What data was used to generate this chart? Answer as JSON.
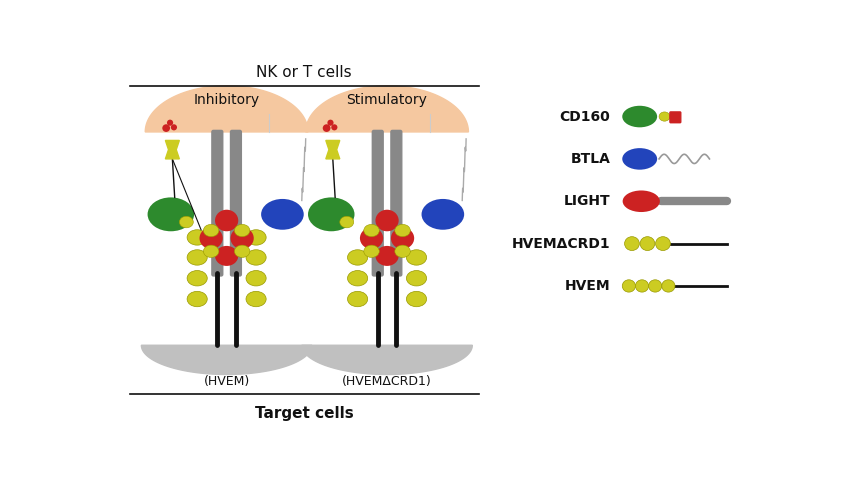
{
  "bg_color": "#ffffff",
  "cell_color": "#f5c8a0",
  "target_cell_color": "#c0c0c0",
  "green_color": "#2d8a2d",
  "blue_color": "#2244bb",
  "red_color": "#cc2222",
  "yellow_color": "#cccc22",
  "yellow_edge": "#999900",
  "gray_color": "#888888",
  "black_color": "#111111",
  "title_top": "NK or T cells",
  "title_bottom": "Target cells",
  "label_inhibitory": "Inhibitory",
  "label_stimulatory": "Stimulatory",
  "label_hvem": "(HVEM)",
  "label_hvemdcrd1": "(HVEMΔCRD1)",
  "legend_labels": [
    "CD160",
    "BTLA",
    "LIGHT",
    "HVEMΔCRD1",
    "HVEM"
  ],
  "fig_width": 8.52,
  "fig_height": 4.9
}
